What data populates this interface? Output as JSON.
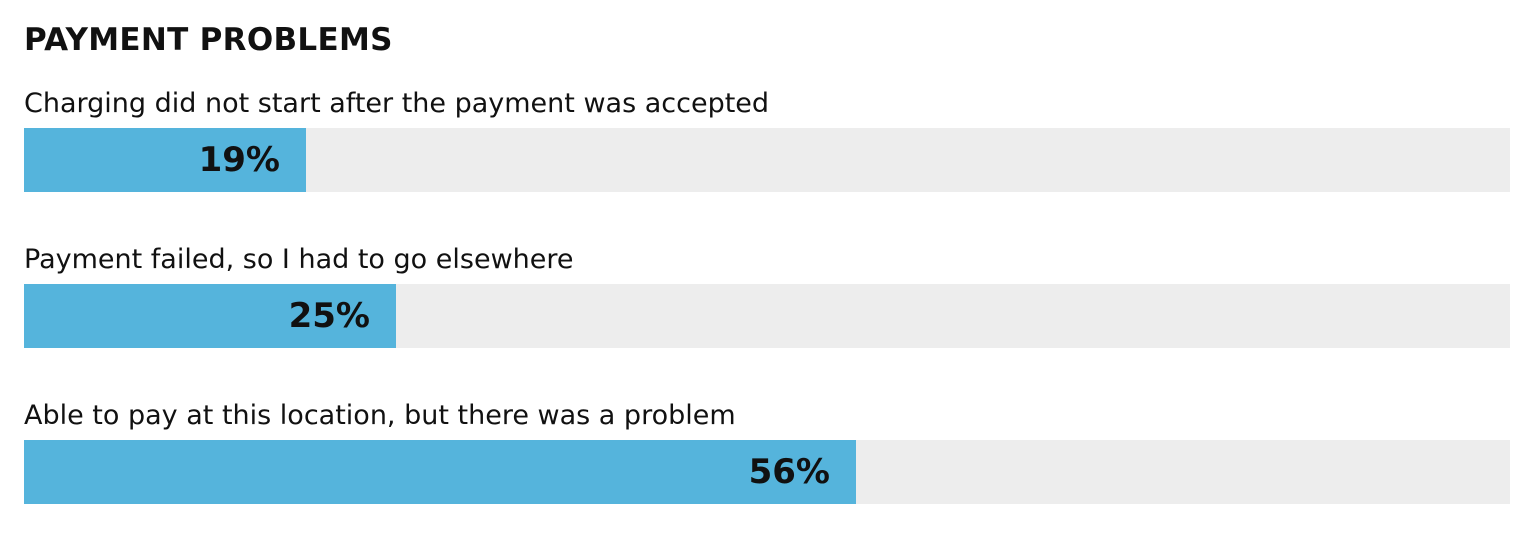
{
  "chart_data": {
    "type": "bar",
    "orientation": "horizontal",
    "title": "PAYMENT PROBLEMS",
    "categories": [
      "Charging did not start after the payment was accepted",
      "Payment failed, so I had to go elsewhere",
      "Able to pay at this location, but there was a problem"
    ],
    "values": [
      19,
      25,
      56
    ],
    "value_labels": [
      "19%",
      "25%",
      "56%"
    ],
    "xlim": [
      0,
      100
    ],
    "grid": false,
    "legend": "none",
    "colors": {
      "bar": "#55b4dc",
      "track": "#ededed",
      "text": "#111111"
    }
  }
}
